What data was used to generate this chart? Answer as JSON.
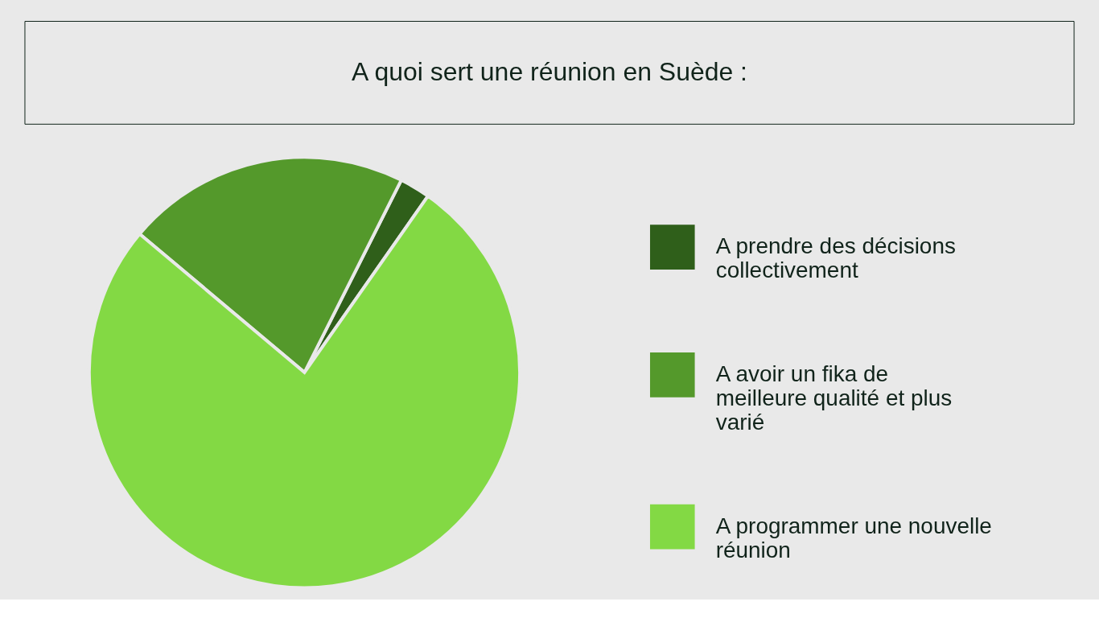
{
  "chart_data": {
    "type": "pie",
    "title": "A quoi sert une réunion en Suède :",
    "categories": [
      "A prendre des décisions collectivement",
      "A avoir un fika de meilleure qualité et plus varié",
      "A programmer une nouvelle réunion"
    ],
    "values": [
      2.3,
      21.3,
      76.4
    ],
    "colors": [
      "#2f5f1a",
      "#54992b",
      "#83d944"
    ],
    "legend": "right"
  }
}
